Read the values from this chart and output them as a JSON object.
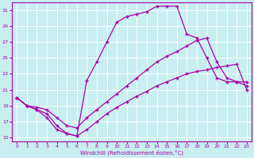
{
  "xlabel": "Windchill (Refroidissement éolien,°C)",
  "background_color": "#c8eef0",
  "line_color": "#aa00aa",
  "xlim": [
    -0.5,
    23.5
  ],
  "ylim": [
    14.5,
    32
  ],
  "xticks": [
    0,
    1,
    2,
    3,
    4,
    5,
    6,
    7,
    8,
    9,
    10,
    11,
    12,
    13,
    14,
    15,
    16,
    17,
    18,
    19,
    20,
    21,
    22,
    23
  ],
  "yticks": [
    15,
    17,
    19,
    21,
    23,
    25,
    27,
    29,
    31
  ],
  "lines": [
    {
      "x": [
        0,
        1,
        2,
        3,
        4,
        5,
        6,
        7,
        8,
        9,
        10,
        11,
        12,
        13,
        14,
        15,
        16,
        17,
        18,
        19,
        20,
        21,
        22,
        23
      ],
      "y": [
        20,
        19,
        18.5,
        18,
        16.5,
        15.5,
        15.2,
        16.0,
        17.0,
        18.0,
        18.8,
        19.5,
        20.2,
        20.8,
        21.5,
        22.0,
        22.5,
        23.0,
        23.3,
        23.5,
        23.8,
        24.0,
        24.2,
        21.0
      ]
    },
    {
      "x": [
        0,
        1,
        2,
        3,
        4,
        5,
        6,
        7,
        8,
        9,
        10,
        11,
        12,
        13,
        14,
        15,
        16,
        17,
        18,
        19,
        20,
        21,
        22,
        23
      ],
      "y": [
        20,
        19,
        18.8,
        18.5,
        17.5,
        16.5,
        16.2,
        17.5,
        18.5,
        19.5,
        20.5,
        21.5,
        22.5,
        23.5,
        24.5,
        25.2,
        25.8,
        26.5,
        27.2,
        27.5,
        24.5,
        22.5,
        22.0,
        21.5
      ]
    },
    {
      "x": [
        0,
        1,
        2,
        3,
        4,
        5,
        6,
        7,
        8,
        9,
        10,
        11,
        12,
        13,
        14,
        15,
        16,
        17,
        18,
        19,
        20,
        21,
        22,
        23
      ],
      "y": [
        20,
        19,
        18.5,
        17.5,
        16.0,
        15.5,
        15.2,
        22.2,
        24.5,
        27.0,
        29.5,
        30.2,
        30.5,
        30.8,
        31.5,
        31.5,
        31.5,
        28.0,
        27.5,
        25.0,
        22.5,
        22.0,
        22.0,
        22.0
      ]
    }
  ]
}
